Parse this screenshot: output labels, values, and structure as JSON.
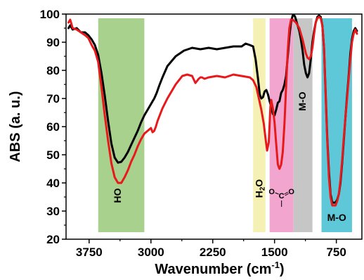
{
  "chart_data": {
    "type": "line",
    "xlabel": "Wavenumber (cm",
    "xlabel_sup": "-1",
    "xlabel_close": ")",
    "ylabel": "ABS (a. u.)",
    "xlim": [
      4030,
      440
    ],
    "ylim": [
      20,
      100
    ],
    "xticks": [
      {
        "value": 3750,
        "label": "3750"
      },
      {
        "value": 3000,
        "label": "3000"
      },
      {
        "value": 2250,
        "label": "2250"
      },
      {
        "value": 1500,
        "label": "1500"
      },
      {
        "value": 750,
        "label": "750"
      }
    ],
    "yticks": [
      {
        "value": 20,
        "label": "20"
      },
      {
        "value": 30,
        "label": "30"
      },
      {
        "value": 40,
        "label": "40"
      },
      {
        "value": 50,
        "label": "50"
      },
      {
        "value": 60,
        "label": "60"
      },
      {
        "value": 70,
        "label": "70"
      },
      {
        "value": 80,
        "label": "80"
      },
      {
        "value": 90,
        "label": "90"
      },
      {
        "value": 100,
        "label": "100"
      }
    ],
    "bands": [
      {
        "x0": 3640,
        "x1": 3080,
        "color": "#a9d18e",
        "label": "HO",
        "label_rotate": -90,
        "label_x": 3400,
        "label_y": 35.5
      },
      {
        "x0": 1760,
        "x1": 1610,
        "color": "#f5f0b4",
        "label": "H",
        "label_sub": "2",
        "label_tail": "O",
        "label_rotate": -90,
        "label_x": 1680,
        "label_y": 38
      },
      {
        "x0": 1560,
        "x1": 1270,
        "color": "#f2a6cf",
        "label": "O C O",
        "label_rotate": 0,
        "label_x": 1415,
        "label_y": 35,
        "is_carbonate": true
      },
      {
        "x0": 1270,
        "x1": 1040,
        "color": "#c6c6c6",
        "label": "M-O",
        "label_rotate": -90,
        "label_x": 1155,
        "label_y": 69
      },
      {
        "x0": 930,
        "x1": 560,
        "color": "#5ec7d8",
        "label": "M-O",
        "label_rotate": 0,
        "label_x": 745,
        "label_y": 27.5
      }
    ],
    "series": [
      {
        "color": "#000000",
        "x": [
          4000,
          3980,
          3950,
          3900,
          3850,
          3800,
          3760,
          3720,
          3680,
          3640,
          3600,
          3560,
          3520,
          3480,
          3440,
          3400,
          3360,
          3320,
          3280,
          3240,
          3200,
          3160,
          3120,
          3080,
          3040,
          3000,
          2980,
          2960,
          2930,
          2900,
          2860,
          2800,
          2700,
          2600,
          2500,
          2400,
          2300,
          2200,
          2100,
          2000,
          1900,
          1850,
          1800,
          1760,
          1730,
          1700,
          1680,
          1660,
          1640,
          1620,
          1600,
          1580,
          1560,
          1540,
          1520,
          1500,
          1480,
          1460,
          1440,
          1420,
          1400,
          1380,
          1360,
          1340,
          1320,
          1300,
          1280,
          1260,
          1250,
          1240,
          1220,
          1200,
          1180,
          1160,
          1140,
          1120,
          1100,
          1080,
          1060,
          1040,
          1020,
          1000,
          980,
          960,
          940,
          920,
          900,
          880,
          860,
          840,
          820,
          800,
          780,
          760,
          740,
          720,
          700,
          680,
          660,
          640,
          620,
          600,
          580,
          560,
          540,
          520,
          500
        ],
        "y": [
          95,
          96,
          94.5,
          95,
          93.5,
          93.5,
          92.5,
          91,
          89,
          85.5,
          79,
          71,
          62,
          54,
          49,
          47.2,
          47.5,
          49,
          51,
          53.5,
          56,
          58.5,
          61.5,
          64,
          66,
          68,
          69,
          70,
          72,
          74.5,
          77.5,
          81.5,
          85,
          87,
          88,
          87.5,
          88,
          87.5,
          88,
          88.5,
          88.5,
          89.5,
          89,
          88.5,
          84,
          77,
          71.5,
          70,
          70.5,
          72.5,
          73,
          71.5,
          69,
          67,
          64.5,
          64,
          66,
          68.5,
          69,
          72,
          73,
          75,
          78,
          85,
          92,
          97,
          99.5,
          99.5,
          99,
          98,
          96,
          94,
          91,
          87,
          82,
          79,
          77.5,
          79,
          84,
          90,
          94,
          97,
          99,
          99.5,
          99,
          96,
          88,
          72,
          56,
          44,
          36,
          33,
          33,
          33,
          34,
          36,
          40,
          47,
          55,
          63,
          71,
          78,
          86,
          91,
          94,
          95,
          94
        ]
      },
      {
        "color": "#e8191b",
        "x": [
          4000,
          3980,
          3950,
          3900,
          3850,
          3800,
          3760,
          3720,
          3680,
          3640,
          3600,
          3560,
          3520,
          3480,
          3440,
          3400,
          3360,
          3320,
          3280,
          3240,
          3200,
          3160,
          3120,
          3080,
          3040,
          3000,
          2980,
          2960,
          2940,
          2920,
          2900,
          2860,
          2800,
          2700,
          2620,
          2560,
          2500,
          2460,
          2420,
          2400,
          2380,
          2350,
          2300,
          2200,
          2100,
          2000,
          1900,
          1800,
          1760,
          1720,
          1690,
          1660,
          1630,
          1610,
          1590,
          1570,
          1560,
          1550,
          1540,
          1520,
          1500,
          1480,
          1460,
          1440,
          1420,
          1400,
          1380,
          1360,
          1340,
          1320,
          1300,
          1280,
          1260,
          1240,
          1220,
          1200,
          1180,
          1160,
          1140,
          1120,
          1100,
          1080,
          1060,
          1040,
          1020,
          1000,
          980,
          960,
          940,
          920,
          900,
          880,
          860,
          840,
          820,
          800,
          780,
          760,
          740,
          720,
          700,
          680,
          660,
          640,
          620,
          600,
          580,
          560,
          540,
          520,
          500
        ],
        "y": [
          97,
          98,
          95,
          94.5,
          93.5,
          92.5,
          91.5,
          89,
          87,
          83,
          74,
          64,
          55,
          47,
          42,
          40,
          40,
          42,
          44.5,
          47.5,
          50,
          53,
          55.5,
          57.5,
          58.5,
          59.5,
          58,
          58.5,
          60,
          62,
          63.5,
          66.5,
          70,
          75,
          78,
          78.5,
          78,
          75.5,
          77,
          77.5,
          77.5,
          77,
          77.5,
          78,
          77.5,
          78.5,
          78,
          77.5,
          76.5,
          74,
          70,
          66,
          61,
          56,
          51.5,
          54.5,
          61,
          67,
          69.5,
          66.5,
          61.5,
          54,
          46.5,
          45,
          46.5,
          51,
          61,
          74,
          87,
          95,
          98,
          98,
          97.5,
          97,
          96,
          95,
          93,
          91,
          88.5,
          86,
          84.5,
          84,
          85,
          88,
          93,
          97,
          98.5,
          99,
          98.5,
          96,
          88,
          71,
          55,
          42,
          35,
          32,
          32,
          32,
          33.5,
          36,
          41,
          48,
          56,
          63,
          70,
          77,
          84,
          90,
          93,
          94.5,
          93
        ]
      }
    ]
  }
}
